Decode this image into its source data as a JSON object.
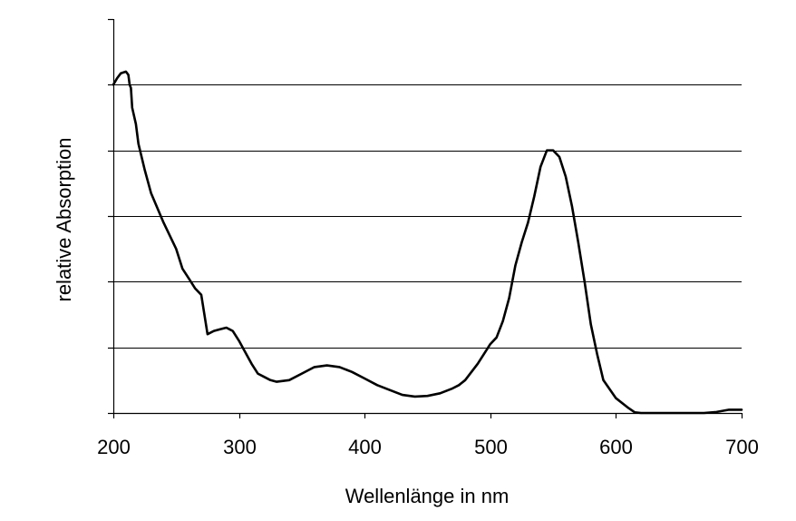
{
  "chart_data": {
    "type": "line",
    "title": "",
    "xlabel": "Wellenlänge in nm",
    "ylabel": "relative Absorption",
    "xlim": [
      200,
      700
    ],
    "ylim": [
      0,
      1
    ],
    "x_ticks": [
      200,
      300,
      400,
      500,
      600,
      700
    ],
    "x_tick_labels": [
      "200",
      "300",
      "400",
      "500",
      "600",
      "700"
    ],
    "y_gridlines": [
      0.2,
      0.4,
      0.6,
      0.8,
      1.0
    ],
    "y_tick_positions": [
      0,
      0.2,
      0.4,
      0.6,
      0.8,
      1.0,
      1.2
    ],
    "y_tick_labels_shown": false,
    "grid": "horizontal",
    "legend": "none",
    "line_color": "#000000",
    "series": [
      {
        "x": [
          200,
          203,
          206,
          210,
          212,
          213,
          214,
          215,
          218,
          220,
          225,
          230,
          240,
          250,
          255,
          260,
          265,
          270,
          275,
          280,
          285,
          290,
          295,
          300,
          310,
          315,
          320,
          325,
          330,
          340,
          350,
          360,
          370,
          380,
          390,
          400,
          410,
          420,
          430,
          440,
          450,
          460,
          470,
          475,
          480,
          490,
          500,
          505,
          510,
          515,
          520,
          525,
          530,
          535,
          540,
          545,
          550,
          555,
          560,
          565,
          570,
          575,
          580,
          585,
          590,
          600,
          610,
          615,
          620,
          640,
          660,
          670,
          680,
          690,
          700
        ],
        "y": [
          1.0,
          1.02,
          1.035,
          1.04,
          1.03,
          1.0,
          0.99,
          0.93,
          0.88,
          0.82,
          0.74,
          0.67,
          0.58,
          0.5,
          0.44,
          0.41,
          0.38,
          0.36,
          0.24,
          0.25,
          0.255,
          0.26,
          0.25,
          0.22,
          0.15,
          0.12,
          0.11,
          0.1,
          0.095,
          0.1,
          0.12,
          0.14,
          0.145,
          0.14,
          0.125,
          0.105,
          0.085,
          0.07,
          0.055,
          0.05,
          0.052,
          0.06,
          0.075,
          0.085,
          0.1,
          0.15,
          0.21,
          0.23,
          0.28,
          0.35,
          0.45,
          0.52,
          0.58,
          0.66,
          0.75,
          0.8,
          0.8,
          0.78,
          0.72,
          0.63,
          0.52,
          0.4,
          0.27,
          0.18,
          0.1,
          0.045,
          0.015,
          0.002,
          0,
          0,
          0,
          0,
          0.003,
          0.01,
          0.01
        ]
      }
    ]
  }
}
